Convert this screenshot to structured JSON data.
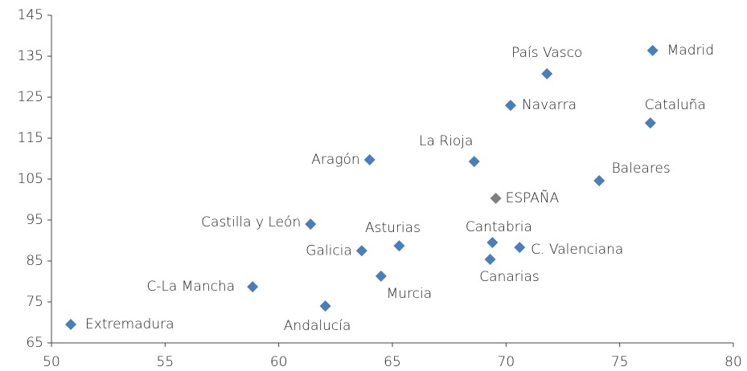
{
  "chart_data": {
    "type": "scatter",
    "labels": [
      "Madrid",
      "País Vasco",
      "Navarra",
      "Cataluña",
      "La Rioja",
      "Aragón",
      "Baleares",
      "ESPAÑA",
      "Castilla y León",
      "Asturias",
      "Cantabria",
      "Galicia",
      "C. Valenciana",
      "Canarias",
      "Murcia",
      "C-La Mancha",
      "Andalucía",
      "Extremadura"
    ],
    "x": [
      76.45,
      71.8,
      70.2,
      76.35,
      68.6,
      64.0,
      74.1,
      69.55,
      61.4,
      65.3,
      69.4,
      63.65,
      70.6,
      69.3,
      64.5,
      58.85,
      62.05,
      50.85
    ],
    "y": [
      136.4,
      130.7,
      123.0,
      118.7,
      109.3,
      109.7,
      104.6,
      100.3,
      94.0,
      88.7,
      89.5,
      87.5,
      88.3,
      85.4,
      81.3,
      78.7,
      74.0,
      69.5
    ],
    "colors": [
      "#4a7ebb",
      "#4a7ebb",
      "#4a7ebb",
      "#4a7ebb",
      "#4a7ebb",
      "#4a7ebb",
      "#4a7ebb",
      "#808080",
      "#4a7ebb",
      "#4a7ebb",
      "#4a7ebb",
      "#4a7ebb",
      "#4a7ebb",
      "#4a7ebb",
      "#4a7ebb",
      "#4a7ebb",
      "#4a7ebb",
      "#4a7ebb"
    ],
    "xlim": [
      50,
      80
    ],
    "xticks": [
      50,
      55,
      60,
      65,
      70,
      75,
      80
    ],
    "ylim": [
      65,
      145
    ],
    "yticks": [
      65,
      75,
      85,
      95,
      105,
      115,
      125,
      135,
      145
    ]
  }
}
